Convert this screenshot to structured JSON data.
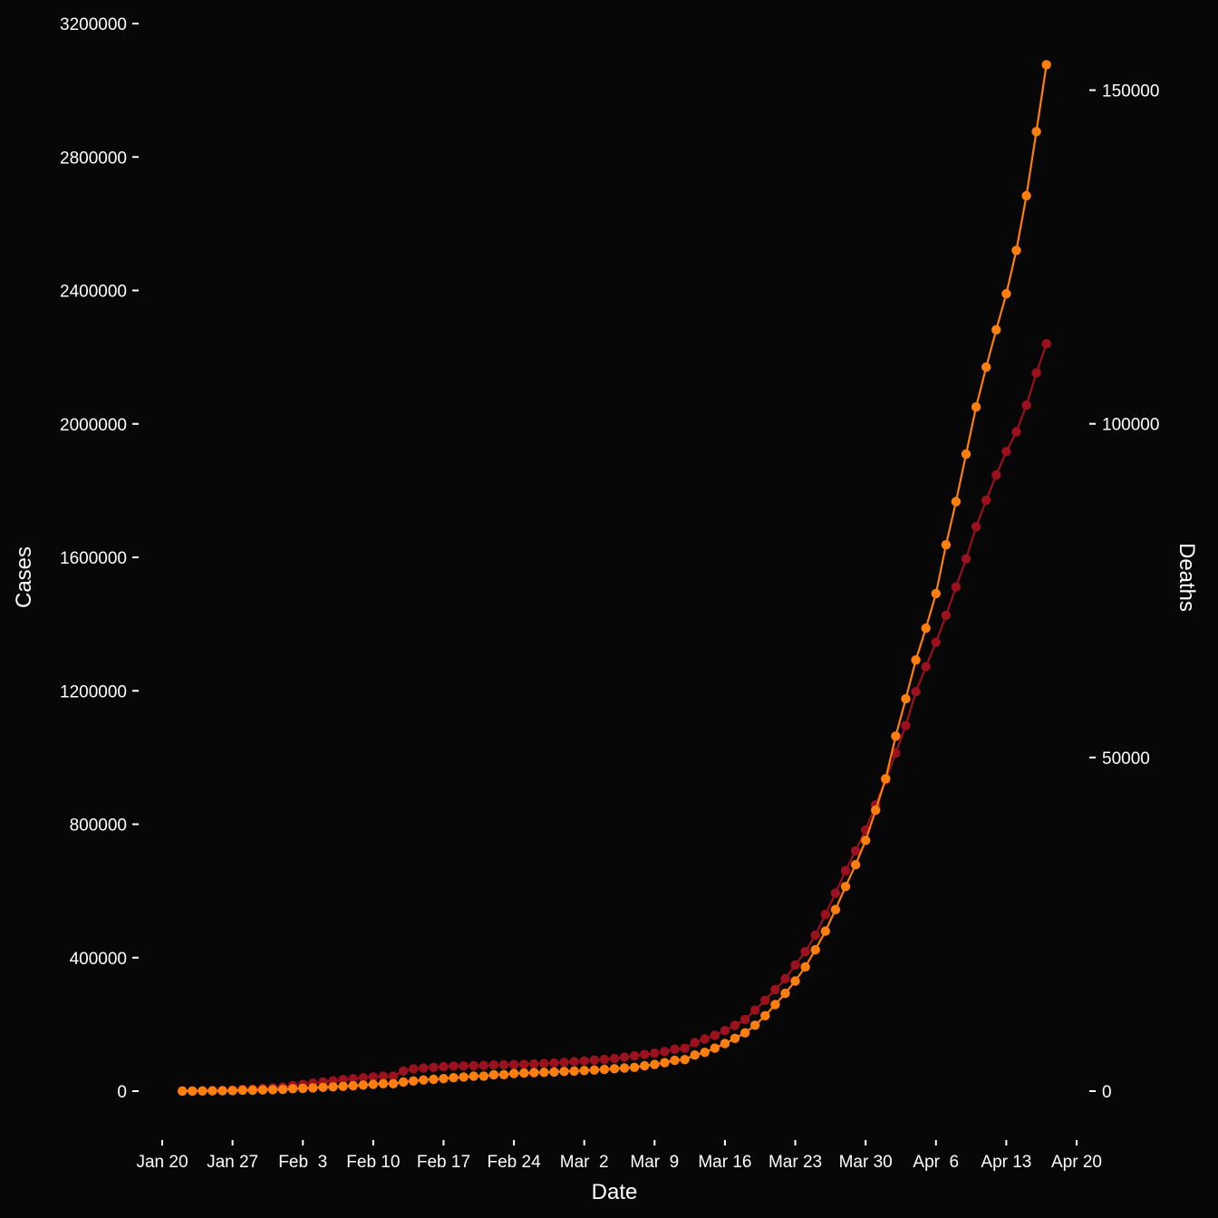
{
  "chart_data": {
    "type": "line",
    "xlabel": "Date",
    "ylabel_left": "Cases",
    "ylabel_right": "Deaths",
    "x_ticks": [
      "Jan 20",
      "Jan 27",
      "Feb  3",
      "Feb 10",
      "Feb 17",
      "Feb 24",
      "Mar  2",
      "Mar  9",
      "Mar 16",
      "Mar 23",
      "Mar 30",
      "Apr  6",
      "Apr 13",
      "Apr 20"
    ],
    "y_left_ticks": [
      "0",
      "400000",
      "800000",
      "1200000",
      "1600000",
      "2000000",
      "2400000",
      "2800000",
      "3200000"
    ],
    "y_right_ticks": [
      "0",
      "50000",
      "100000",
      "150000"
    ],
    "x_range": [
      "2020-01-20",
      "2020-04-20"
    ],
    "y_left_range": [
      0,
      3200000
    ],
    "y_right_range": [
      0,
      150000
    ],
    "series": [
      {
        "axis": "left",
        "color": "#9b111e",
        "x": [
          "2020-01-22",
          "2020-01-23",
          "2020-01-24",
          "2020-01-25",
          "2020-01-26",
          "2020-01-27",
          "2020-01-28",
          "2020-01-29",
          "2020-01-30",
          "2020-01-31",
          "2020-02-01",
          "2020-02-02",
          "2020-02-03",
          "2020-02-04",
          "2020-02-05",
          "2020-02-06",
          "2020-02-07",
          "2020-02-08",
          "2020-02-09",
          "2020-02-10",
          "2020-02-11",
          "2020-02-12",
          "2020-02-13",
          "2020-02-14",
          "2020-02-15",
          "2020-02-16",
          "2020-02-17",
          "2020-02-18",
          "2020-02-19",
          "2020-02-20",
          "2020-02-21",
          "2020-02-22",
          "2020-02-23",
          "2020-02-24",
          "2020-02-25",
          "2020-02-26",
          "2020-02-27",
          "2020-02-28",
          "2020-02-29",
          "2020-03-01",
          "2020-03-02",
          "2020-03-03",
          "2020-03-04",
          "2020-03-05",
          "2020-03-06",
          "2020-03-07",
          "2020-03-08",
          "2020-03-09",
          "2020-03-10",
          "2020-03-11",
          "2020-03-12",
          "2020-03-13",
          "2020-03-14",
          "2020-03-15",
          "2020-03-16",
          "2020-03-17",
          "2020-03-18",
          "2020-03-19",
          "2020-03-20",
          "2020-03-21",
          "2020-03-22",
          "2020-03-23",
          "2020-03-24",
          "2020-03-25",
          "2020-03-26",
          "2020-03-27",
          "2020-03-28",
          "2020-03-29",
          "2020-03-30",
          "2020-03-31",
          "2020-04-01",
          "2020-04-02",
          "2020-04-03",
          "2020-04-04",
          "2020-04-05",
          "2020-04-06",
          "2020-04-07",
          "2020-04-08",
          "2020-04-09",
          "2020-04-10",
          "2020-04-11",
          "2020-04-12",
          "2020-04-13",
          "2020-04-14",
          "2020-04-15",
          "2020-04-16",
          "2020-04-17"
        ],
        "values": [
          557,
          655,
          941,
          1434,
          2118,
          2927,
          5578,
          6166,
          8234,
          9927,
          12038,
          16787,
          19881,
          23892,
          27635,
          30794,
          34391,
          37120,
          40150,
          42762,
          44802,
          45221,
          60368,
          66885,
          69030,
          71224,
          73258,
          75136,
          75639,
          76197,
          76819,
          78572,
          78958,
          79561,
          80406,
          81388,
          82746,
          84112,
          86011,
          88369,
          90306,
          92840,
          95120,
          97886,
          101801,
          105847,
          109821,
          113590,
          118620,
          125875,
          128352,
          145205,
          156101,
          167454,
          181574,
          197102,
          214821,
          242570,
          272208,
          304507,
          336953,
          378235,
          418045,
          467653,
          529591,
          593291,
          660706,
          720117,
          782365,
          857487,
          932605,
          1013157,
          1095917,
          1197405,
          1272115,
          1345101,
          1426096,
          1511104,
          1595350,
          1691719,
          1771514,
          1846680,
          1917320,
          1976191,
          2056054,
          2152437,
          2240190
        ]
      },
      {
        "axis": "right",
        "color": "#ff7f0e",
        "x": [
          "2020-01-22",
          "2020-01-23",
          "2020-01-24",
          "2020-01-25",
          "2020-01-26",
          "2020-01-27",
          "2020-01-28",
          "2020-01-29",
          "2020-01-30",
          "2020-01-31",
          "2020-02-01",
          "2020-02-02",
          "2020-02-03",
          "2020-02-04",
          "2020-02-05",
          "2020-02-06",
          "2020-02-07",
          "2020-02-08",
          "2020-02-09",
          "2020-02-10",
          "2020-02-11",
          "2020-02-12",
          "2020-02-13",
          "2020-02-14",
          "2020-02-15",
          "2020-02-16",
          "2020-02-17",
          "2020-02-18",
          "2020-02-19",
          "2020-02-20",
          "2020-02-21",
          "2020-02-22",
          "2020-02-23",
          "2020-02-24",
          "2020-02-25",
          "2020-02-26",
          "2020-02-27",
          "2020-02-28",
          "2020-02-29",
          "2020-03-01",
          "2020-03-02",
          "2020-03-03",
          "2020-03-04",
          "2020-03-05",
          "2020-03-06",
          "2020-03-07",
          "2020-03-08",
          "2020-03-09",
          "2020-03-10",
          "2020-03-11",
          "2020-03-12",
          "2020-03-13",
          "2020-03-14",
          "2020-03-15",
          "2020-03-16",
          "2020-03-17",
          "2020-03-18",
          "2020-03-19",
          "2020-03-20",
          "2020-03-21",
          "2020-03-22",
          "2020-03-23",
          "2020-03-24",
          "2020-03-25",
          "2020-03-26",
          "2020-03-27",
          "2020-03-28",
          "2020-03-29",
          "2020-03-30",
          "2020-03-31",
          "2020-04-01",
          "2020-04-02",
          "2020-04-03",
          "2020-04-04",
          "2020-04-05",
          "2020-04-06",
          "2020-04-07",
          "2020-04-08",
          "2020-04-09",
          "2020-04-10",
          "2020-04-11",
          "2020-04-12",
          "2020-04-13",
          "2020-04-14",
          "2020-04-15",
          "2020-04-16",
          "2020-04-17"
        ],
        "values": [
          17,
          18,
          26,
          42,
          56,
          82,
          131,
          133,
          171,
          213,
          259,
          362,
          426,
          492,
          564,
          634,
          719,
          806,
          906,
          1013,
          1113,
          1118,
          1371,
          1523,
          1666,
          1770,
          1868,
          2007,
          2122,
          2247,
          2251,
          2458,
          2469,
          2629,
          2708,
          2770,
          2814,
          2872,
          2941,
          2996,
          3085,
          3160,
          3254,
          3348,
          3460,
          3558,
          3803,
          3996,
          4262,
          4615,
          4720,
          5404,
          5819,
          6440,
          7126,
          7905,
          8733,
          9867,
          11299,
          12973,
          14651,
          16505,
          18625,
          21181,
          23970,
          27198,
          30652,
          33925,
          37582,
          42107,
          46809,
          53190,
          58787,
          64606,
          69374,
          74565,
          81865,
          88338,
          95455,
          102525,
          108503,
          114090,
          119481,
          125983,
          134177,
          143800,
          153822
        ]
      }
    ]
  }
}
